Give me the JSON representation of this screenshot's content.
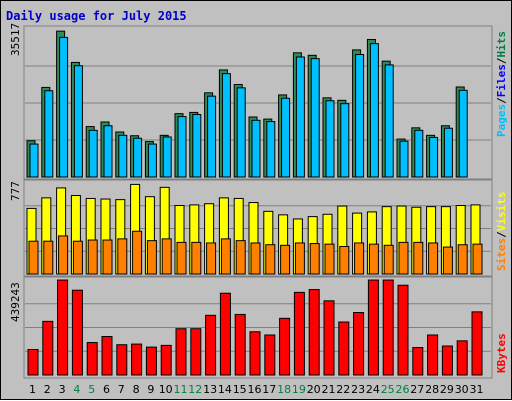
{
  "title": "Daily usage for July 2015",
  "colors": {
    "title": "#0000cc",
    "hits": "#008040",
    "files": "#0000ff",
    "hits_bar": "#2e8b57",
    "files_bar": "#00bfff",
    "pages_bar": "#00bfff",
    "visits_bar": "#ffff00",
    "sites_bar": "#ff8000",
    "kbytes_bar": "#ff0000",
    "weekend_tick": "#008040",
    "weekday_tick": "#000000",
    "panel_bg": "#c0c0c0",
    "grid": "#808080"
  },
  "panels": {
    "top": {
      "max_label": "35517",
      "legend": [
        "Pages",
        "/",
        "Files",
        "/",
        "Hits"
      ]
    },
    "middle": {
      "max_label": "777",
      "legend": [
        "Sites",
        "/",
        "Visits"
      ]
    },
    "bottom": {
      "max_label": "439243",
      "legend": [
        "KBytes"
      ]
    }
  },
  "chart_data": {
    "type": "bar",
    "title": "Daily usage for July 2015",
    "categories": [
      "1",
      "2",
      "3",
      "4",
      "5",
      "6",
      "7",
      "8",
      "9",
      "10",
      "11",
      "12",
      "13",
      "14",
      "15",
      "16",
      "17",
      "18",
      "19",
      "20",
      "21",
      "22",
      "23",
      "24",
      "25",
      "26",
      "27",
      "28",
      "29",
      "30",
      "31"
    ],
    "weekend_days": [
      "4",
      "5",
      "11",
      "12",
      "18",
      "19",
      "25",
      "26"
    ],
    "panels": [
      {
        "name": "Hits / Files / Pages",
        "ymax": 35517,
        "series": [
          {
            "name": "Hits",
            "values": [
              8700,
              21500,
              35000,
              27500,
              12100,
              13200,
              10800,
              9900,
              8500,
              10000,
              15200,
              15500,
              20200,
              25700,
              22200,
              14400,
              13900,
              19700,
              29800,
              29200,
              19000,
              18400,
              30500,
              33000,
              27800,
              9100,
              11800,
              10000,
              12300,
              21600,
              0
            ]
          },
          {
            "name": "Files",
            "values": [
              7900,
              20700,
              33500,
              26700,
              11200,
              12300,
              10000,
              9300,
              7900,
              9600,
              14500,
              15000,
              19400,
              24800,
              21400,
              13600,
              13300,
              18900,
              28800,
              28400,
              18300,
              17600,
              29400,
              32000,
              26900,
              8600,
              11200,
              9500,
              11700,
              20800,
              0
            ]
          }
        ]
      },
      {
        "name": "Visits / Sites",
        "ymax": 777,
        "series": [
          {
            "name": "Visits",
            "values": [
              560,
              650,
              735,
              670,
              645,
              640,
              635,
              765,
              660,
              740,
              585,
              590,
              600,
              650,
              645,
              610,
              535,
              505,
              470,
              490,
              510,
              580,
              520,
              530,
              575,
              580,
              570,
              575,
              575,
              585,
              590
            ]
          },
          {
            "name": "Sites",
            "values": [
              280,
              280,
              325,
              280,
              290,
              290,
              300,
              365,
              285,
              300,
              270,
              270,
              265,
              300,
              285,
              265,
              250,
              245,
              265,
              260,
              255,
              235,
              265,
              255,
              245,
              270,
              270,
              265,
              230,
              250,
              255
            ]
          }
        ]
      },
      {
        "name": "KBytes",
        "ymax": 439243,
        "series": [
          {
            "name": "KBytes",
            "values": [
              118000,
              248000,
              439000,
              392000,
              150000,
              178000,
              140000,
              143000,
              129000,
              137000,
              214000,
              214000,
              276000,
              378000,
              280000,
              200000,
              185000,
              262000,
              382000,
              395000,
              343000,
              245000,
              289000,
              439000,
              439000,
              415000,
              127000,
              185000,
              134000,
              158000,
              292000
            ]
          }
        ]
      }
    ]
  }
}
